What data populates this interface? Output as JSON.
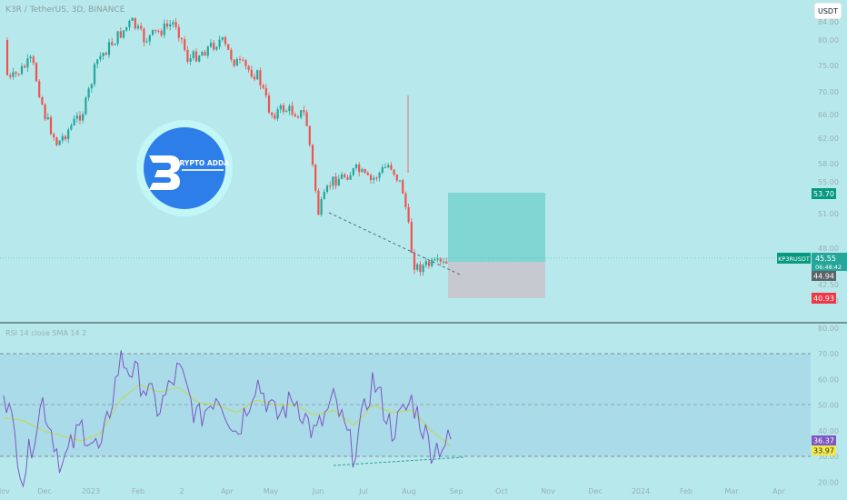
{
  "header": {
    "symbol_title": "K3R / TetherUS, 3D, BINANCE",
    "currency_button": "USDT"
  },
  "logo": {
    "text": "CRYPTO ADDA"
  },
  "price_tags": {
    "target": "53.70",
    "symbol": "KP3RUSDT",
    "current": "45.55",
    "countdown": "06:48:42",
    "entry": "44.94",
    "stop": "40.93"
  },
  "rsi_tags": {
    "rsi": "36.37",
    "sma": "33.97"
  },
  "colors": {
    "background": "#b7e9ec",
    "up_candle": "#26a69a",
    "down_candle": "#ef5350",
    "rsi_line": "#7e57c2",
    "rsi_sma": "#c9d54a",
    "target_zone": "#7fd6d3",
    "stop_zone": "#c6c9cf",
    "target_tag": "#089981",
    "stop_tag": "#f23645",
    "price_tag": "#26a69a"
  },
  "chart_data": [
    {
      "type": "candlestick",
      "title": "K3R / TetherUS, 3D, BINANCE",
      "x_ticks": [
        "Nov",
        "Dec",
        "2023",
        "Feb",
        "2",
        "Apr",
        "May",
        "Jun",
        "Jul",
        "Aug",
        "Sep",
        "Oct",
        "Nov",
        "Dec",
        "2024",
        "Feb",
        "Mar",
        "Apr"
      ],
      "y_ticks": [
        40,
        42.5,
        45,
        48,
        51,
        55,
        58,
        62,
        66,
        70,
        75,
        80,
        84
      ],
      "y_range": [
        39,
        86
      ],
      "price_path": [
        {
          "x": "Nov",
          "y": 80
        },
        {
          "x": "Nov",
          "y": 72
        },
        {
          "x": "Dec",
          "y": 76
        },
        {
          "x": "Dec",
          "y": 66
        },
        {
          "x": "Dec",
          "y": 61
        },
        {
          "x": "2023",
          "y": 67
        },
        {
          "x": "2023",
          "y": 76
        },
        {
          "x": "Feb",
          "y": 84
        },
        {
          "x": "Feb",
          "y": 80
        },
        {
          "x": "2",
          "y": 84
        },
        {
          "x": "2",
          "y": 76
        },
        {
          "x": "Apr",
          "y": 80
        },
        {
          "x": "Apr",
          "y": 76
        },
        {
          "x": "May",
          "y": 73
        },
        {
          "x": "May",
          "y": 66
        },
        {
          "x": "May",
          "y": 67
        },
        {
          "x": "Jun",
          "y": 66
        },
        {
          "x": "Jun",
          "y": 51
        },
        {
          "x": "Jun",
          "y": 55
        },
        {
          "x": "Jul",
          "y": 57
        },
        {
          "x": "Jul",
          "y": 55
        },
        {
          "x": "Aug",
          "y": 58
        },
        {
          "x": "Aug",
          "y": 54
        },
        {
          "x": "Aug",
          "y": 45
        },
        {
          "x": "Aug",
          "y": 45.5
        }
      ],
      "current_price": 45.55,
      "trendline": [
        {
          "x": "Jun",
          "y": 51
        },
        {
          "x": "Sep",
          "y": 44
        }
      ],
      "position": {
        "target": 53.7,
        "entry": 44.94,
        "stop": 40.93
      }
    },
    {
      "type": "line",
      "title": "RSI 14 close SMA 14 2",
      "y_ticks": [
        20,
        30,
        40,
        50,
        60,
        70,
        80
      ],
      "bands": {
        "upper": 70,
        "middle": 50,
        "lower": 30
      },
      "series": [
        {
          "name": "RSI",
          "values": [
            58,
            22,
            52,
            26,
            42,
            31,
            68,
            60,
            48,
            64,
            44,
            55,
            39,
            60,
            45,
            53,
            38,
            52,
            31,
            60,
            40,
            52,
            33,
            36
          ]
        },
        {
          "name": "SMA",
          "values": [
            45,
            44,
            40,
            38,
            36,
            39,
            52,
            58,
            55,
            57,
            51,
            50,
            47,
            52,
            50,
            50,
            46,
            48,
            42,
            50,
            47,
            48,
            40,
            34
          ]
        }
      ],
      "last_rsi": 36.37,
      "last_sma": 33.97,
      "divergence_line": [
        {
          "x": "Jun",
          "y": 27
        },
        {
          "x": "Sep",
          "y": 29.5
        }
      ]
    }
  ]
}
